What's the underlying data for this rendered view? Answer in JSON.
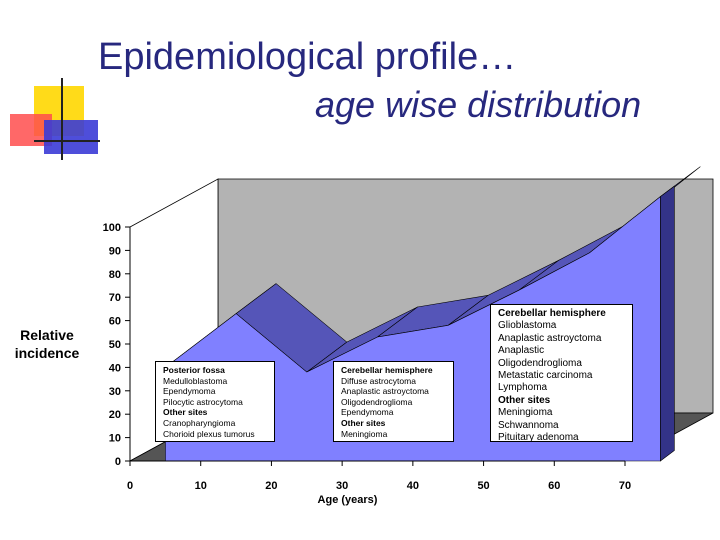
{
  "slide": {
    "title_line1": "Epidemiological profile…",
    "title_line2": "age wise distribution"
  },
  "colors": {
    "title": "#27287e",
    "area_front": "#8080ff",
    "area_top": "#5555b8",
    "area_side": "#333388",
    "back_wall": "#b3b3b3",
    "floor": "#555555"
  },
  "chart_data": {
    "type": "area",
    "title": "",
    "xlabel": "Age (years)",
    "ylabel": "Relative incidence",
    "x_ticks": [
      0,
      10,
      20,
      30,
      40,
      50,
      60,
      70
    ],
    "y_ticks": [
      0,
      10,
      20,
      30,
      40,
      50,
      60,
      70,
      80,
      90,
      100
    ],
    "xlim": [
      0,
      70
    ],
    "ylim": [
      0,
      100
    ],
    "three_d": true,
    "series": [
      {
        "name": "",
        "x": [
          5,
          15,
          25,
          35,
          45,
          55,
          65,
          75
        ],
        "y": [
          40,
          63,
          38,
          53,
          58,
          73,
          89,
          113
        ]
      }
    ],
    "annotations": [
      {
        "id": "box1",
        "lines": [
          {
            "text": "Posterior fossa",
            "bold": true
          },
          {
            "text": "Medulloblastoma",
            "bold": false
          },
          {
            "text": "Ependymoma",
            "bold": false
          },
          {
            "text": "Pilocytic astrocytoma",
            "bold": false
          },
          {
            "text": "Other sites",
            "bold": true
          },
          {
            "text": "Cranopharyngioma",
            "bold": false
          },
          {
            "text": "Chorioid plexus tumorus",
            "bold": false
          }
        ]
      },
      {
        "id": "box2",
        "lines": [
          {
            "text": "Cerebellar hemisphere",
            "bold": true
          },
          {
            "text": "Diffuse astrocytoma",
            "bold": false
          },
          {
            "text": "Anaplastic astroyctoma",
            "bold": false
          },
          {
            "text": "Oligodendroglioma",
            "bold": false
          },
          {
            "text": "Ependymoma",
            "bold": false
          },
          {
            "text": "Other sites",
            "bold": true
          },
          {
            "text": "Meningioma",
            "bold": false
          }
        ]
      },
      {
        "id": "box3",
        "lines": [
          {
            "text": "Cerebellar hemisphere",
            "bold": true
          },
          {
            "text": "Glioblastoma",
            "bold": false
          },
          {
            "text": "Anaplastic astroyctoma",
            "bold": false
          },
          {
            "text": "Anaplastic",
            "bold": false
          },
          {
            "text": "Oligodendroglioma",
            "bold": false
          },
          {
            "text": "Metastatic carcinoma",
            "bold": false
          },
          {
            "text": "Lymphoma",
            "bold": false
          },
          {
            "text": "Other sites",
            "bold": true
          },
          {
            "text": "Meningioma",
            "bold": false
          },
          {
            "text": "Schwannoma",
            "bold": false
          },
          {
            "text": "Pituitary adenoma",
            "bold": false
          }
        ]
      }
    ]
  }
}
